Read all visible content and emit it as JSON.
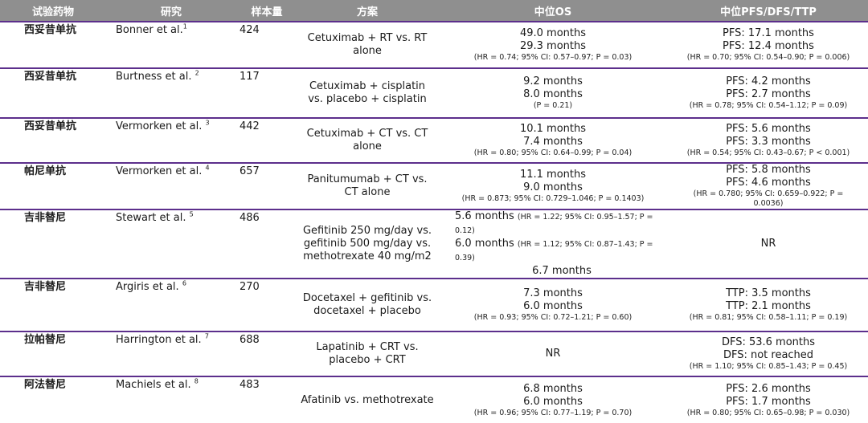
{
  "table": {
    "headers": [
      "试验药物",
      "研究",
      "样本量",
      "方案",
      "中位OS",
      "中位PFS/DFS/TTP"
    ],
    "rows": [
      {
        "drug": "西妥昔单抗",
        "study": "Bonner et al.",
        "ref": "1",
        "n": "424",
        "regimen": "Cetuximab + RT vs. RT alone",
        "os": [
          "49.0 months",
          "29.3 months"
        ],
        "os_stat": "(HR = 0.74; 95% CI: 0.57–0.97; P = 0.03)",
        "pfs": [
          "PFS: 17.1 months",
          "PFS: 12.4 months"
        ],
        "pfs_stat": "(HR = 0.70; 95% CI: 0.54–0.90; P = 0.006)"
      },
      {
        "drug": "西妥昔单抗",
        "study": "Burtness et al.",
        "ref": "2",
        "n": "117",
        "regimen": "Cetuximab + cisplatin vs. placebo + cisplatin",
        "os": [
          "9.2 months",
          "8.0 months"
        ],
        "os_stat": "(P = 0.21)",
        "pfs": [
          "PFS: 4.2 months",
          "PFS: 2.7 months"
        ],
        "pfs_stat": "(HR = 0.78; 95% CI: 0.54–1.12; P = 0.09)"
      },
      {
        "drug": "西妥昔单抗",
        "study": "Vermorken et al.",
        "ref": "3",
        "n": "442",
        "regimen": "Cetuximab + CT vs. CT alone",
        "os": [
          "10.1 months",
          "7.4 months"
        ],
        "os_stat": "(HR = 0.80; 95% CI: 0.64–0.99; P = 0.04)",
        "pfs": [
          "PFS: 5.6 months",
          "PFS: 3.3 months"
        ],
        "pfs_stat": "(HR = 0.54; 95% CI: 0.43–0.67; P < 0.001)"
      },
      {
        "drug": "帕尼单抗",
        "study": "Vermorken et al.",
        "ref": "4",
        "n": "657",
        "regimen": "Panitumumab + CT vs. CT alone",
        "os": [
          "11.1 months",
          "9.0 months"
        ],
        "os_stat": "(HR = 0.873; 95% CI: 0.729–1.046; P = 0.1403)",
        "pfs": [
          "PFS: 5.8 months",
          "PFS: 4.6 months"
        ],
        "pfs_stat": "(HR = 0.780; 95% CI: 0.659–0.922; P = 0.0036)"
      },
      {
        "drug": "吉非替尼",
        "study": "Stewart et al.",
        "ref": "5",
        "n": "486",
        "regimen": "Gefitinib 250 mg/day vs. gefitinib 500 mg/day vs. methotrexate 40 mg/m2",
        "os_detail": [
          {
            "value": "5.6 months",
            "stat": "(HR = 1.22; 95% CI: 0.95–1.57; P = 0.12)"
          },
          {
            "value": "6.0 months",
            "stat": "(HR = 1.12; 95% CI: 0.87–1.43; P = 0.39)"
          },
          {
            "value": "6.7 months",
            "stat": ""
          }
        ],
        "pfs_text": "NR"
      },
      {
        "drug": "吉非替尼",
        "study": "Argiris et al.",
        "ref": "6",
        "n": "270",
        "regimen": "Docetaxel + gefitinib vs. docetaxel + placebo",
        "os": [
          "7.3 months",
          "6.0 months"
        ],
        "os_stat": "(HR = 0.93; 95% CI: 0.72–1.21; P = 0.60)",
        "pfs": [
          "TTP: 3.5 months",
          "TTP: 2.1 months"
        ],
        "pfs_stat": "(HR = 0.81; 95% CI: 0.58–1.11; P = 0.19)"
      },
      {
        "drug": "拉帕替尼",
        "study": "Harrington et al.",
        "ref": "7",
        "n": "688",
        "regimen": "Lapatinib + CRT vs. placebo + CRT",
        "os_text": "NR",
        "pfs": [
          "DFS: 53.6 months",
          "DFS: not reached"
        ],
        "pfs_stat": "(HR = 1.10; 95% CI: 0.85–1.43; P = 0.45)"
      },
      {
        "drug": "阿法替尼",
        "study": "Machiels et al.",
        "ref": "8",
        "n": "483",
        "regimen": "Afatinib vs. methotrexate",
        "os": [
          "6.8 months",
          "6.0 months"
        ],
        "os_stat": "(HR = 0.96; 95% CI: 0.77–1.19; P = 0.70)",
        "pfs": [
          "PFS: 2.6 months",
          "PFS: 1.7 months"
        ],
        "pfs_stat": "(HR = 0.80; 95% CI: 0.65–0.98; P = 0.030)"
      }
    ]
  }
}
